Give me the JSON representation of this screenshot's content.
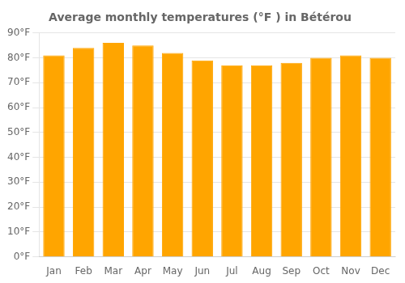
{
  "chart_data": {
    "type": "bar",
    "title": "Average monthly temperatures (°F ) in Bétérou",
    "categories": [
      "Jan",
      "Feb",
      "Mar",
      "Apr",
      "May",
      "Jun",
      "Jul",
      "Aug",
      "Sep",
      "Oct",
      "Nov",
      "Dec"
    ],
    "values": [
      81,
      84,
      86,
      85,
      82,
      79,
      77,
      77,
      78,
      80,
      81,
      80
    ],
    "color": "#FFA500",
    "ylim": [
      0,
      90
    ],
    "yticks": [
      {
        "value": 0,
        "label": "0°F"
      },
      {
        "value": 10,
        "label": "10°F"
      },
      {
        "value": 20,
        "label": "20°F"
      },
      {
        "value": 30,
        "label": "30°F"
      },
      {
        "value": 40,
        "label": "40°F"
      },
      {
        "value": 50,
        "label": "50°F"
      },
      {
        "value": 60,
        "label": "60°F"
      },
      {
        "value": 70,
        "label": "70°F"
      },
      {
        "value": 80,
        "label": "80°F"
      },
      {
        "value": 90,
        "label": "90°F"
      }
    ],
    "grid": true
  }
}
